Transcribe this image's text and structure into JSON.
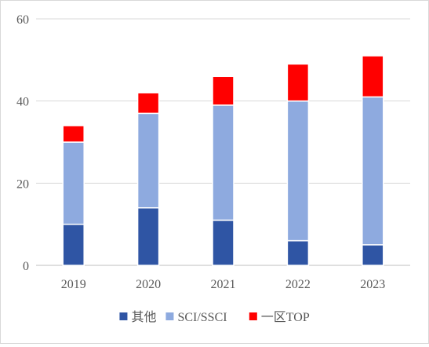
{
  "chart_data": {
    "type": "bar",
    "stacked": true,
    "categories": [
      "2019",
      "2020",
      "2021",
      "2022",
      "2023"
    ],
    "series": [
      {
        "name": "其他",
        "values": [
          10,
          14,
          11,
          6,
          5
        ],
        "color": "#2f55a4"
      },
      {
        "name": "SCI/SSCI",
        "values": [
          20,
          23,
          28,
          34,
          36
        ],
        "color": "#8eaadf"
      },
      {
        "name": "一区TOP",
        "values": [
          4,
          5,
          7,
          9,
          10
        ],
        "color": "#ff0000"
      }
    ],
    "ylim": [
      0,
      60
    ],
    "yticks": [
      0,
      20,
      40,
      60
    ],
    "grid": true,
    "legend_position": "bottom",
    "title": "",
    "xlabel": "",
    "ylabel": ""
  }
}
